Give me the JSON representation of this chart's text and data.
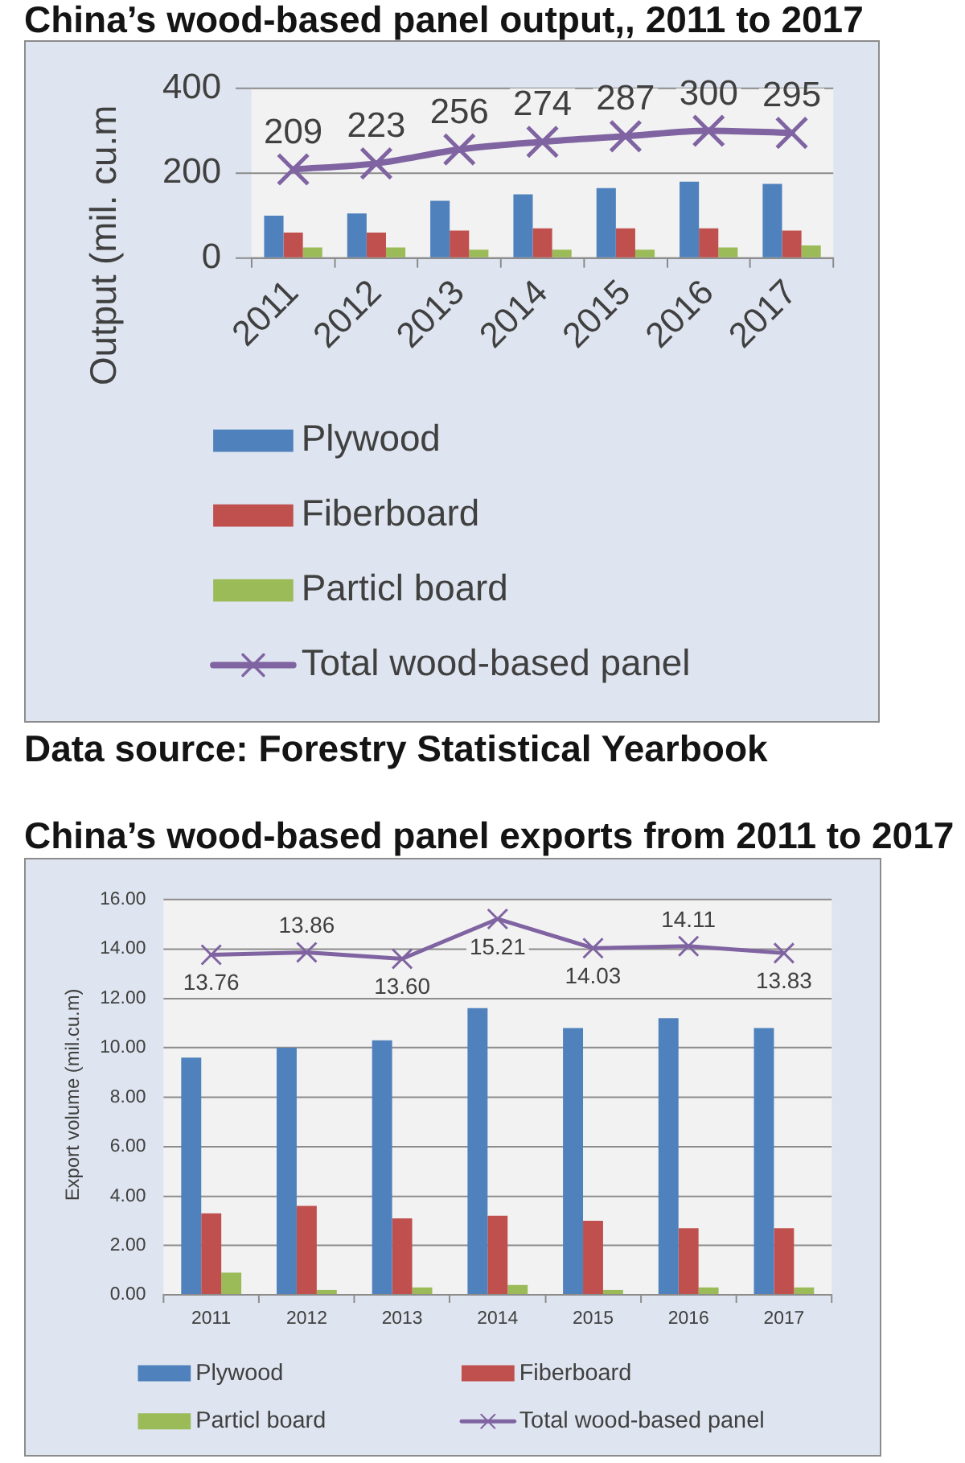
{
  "chart_data": [
    {
      "type": "bar",
      "title": "China’s wood-based panel output,, 2011 to 2017",
      "ylabel": "Output (mil. cu.m",
      "categories": [
        "2011",
        "2012",
        "2013",
        "2014",
        "2015",
        "2016",
        "2017"
      ],
      "series": [
        {
          "name": "Plywood",
          "color": "#4f81bd",
          "values": [
            100,
            105,
            135,
            150,
            165,
            180,
            175
          ]
        },
        {
          "name": "Fiberboard",
          "color": "#c0504d",
          "values": [
            60,
            60,
            65,
            70,
            70,
            70,
            65
          ]
        },
        {
          "name": "Particl board",
          "color": "#9bbb59",
          "values": [
            25,
            25,
            20,
            20,
            20,
            25,
            30
          ]
        },
        {
          "name": "Total wood-based panel",
          "type": "line",
          "color": "#8064a2",
          "values": [
            209,
            223,
            256,
            274,
            287,
            300,
            295
          ],
          "value_labels": [
            "209",
            "223",
            "256",
            "274",
            "287",
            "300",
            "295"
          ]
        }
      ],
      "ylim": [
        0,
        400
      ],
      "yticks": [
        0,
        200,
        400
      ],
      "grid": "y",
      "legend": "bottom",
      "marker": "cross",
      "annotations": [
        "Data source: Forestry Statistical Yearbook"
      ]
    },
    {
      "type": "bar",
      "title": "China’s wood-based panel exports from 2011 to 2017",
      "ylabel": "Export volume (mil.cu.m)",
      "categories": [
        "2011",
        "2012",
        "2013",
        "2014",
        "2015",
        "2016",
        "2017"
      ],
      "series": [
        {
          "name": "Plywood",
          "color": "#4f81bd",
          "values": [
            9.6,
            10.0,
            10.3,
            11.6,
            10.8,
            11.2,
            10.8
          ]
        },
        {
          "name": "Fiberboard",
          "color": "#c0504d",
          "values": [
            3.3,
            3.6,
            3.1,
            3.2,
            3.0,
            2.7,
            2.7
          ]
        },
        {
          "name": "Particl board",
          "color": "#9bbb59",
          "values": [
            0.9,
            0.2,
            0.3,
            0.4,
            0.2,
            0.3,
            0.3
          ]
        },
        {
          "name": "Total wood-based panel",
          "type": "line",
          "color": "#8064a2",
          "values": [
            13.76,
            13.86,
            13.6,
            15.21,
            14.03,
            14.11,
            13.83
          ],
          "value_labels": [
            "13.76",
            "13.86",
            "13.60",
            "15.21",
            "14.03",
            "14.11",
            "13.83"
          ]
        }
      ],
      "ylim": [
        0,
        16
      ],
      "yticks": [
        {
          "value": 0,
          "label": "0.00"
        },
        {
          "value": 2,
          "label": "2.00"
        },
        {
          "value": 4,
          "label": "4.00"
        },
        {
          "value": 6,
          "label": "6.00"
        },
        {
          "value": 8,
          "label": "8.00"
        },
        {
          "value": 10,
          "label": "10.00"
        },
        {
          "value": 12,
          "label": "12.00"
        },
        {
          "value": 14,
          "label": "14.00"
        },
        {
          "value": 16,
          "label": "16.00"
        }
      ],
      "grid": "y",
      "legend": "bottom",
      "marker": "cross"
    }
  ]
}
